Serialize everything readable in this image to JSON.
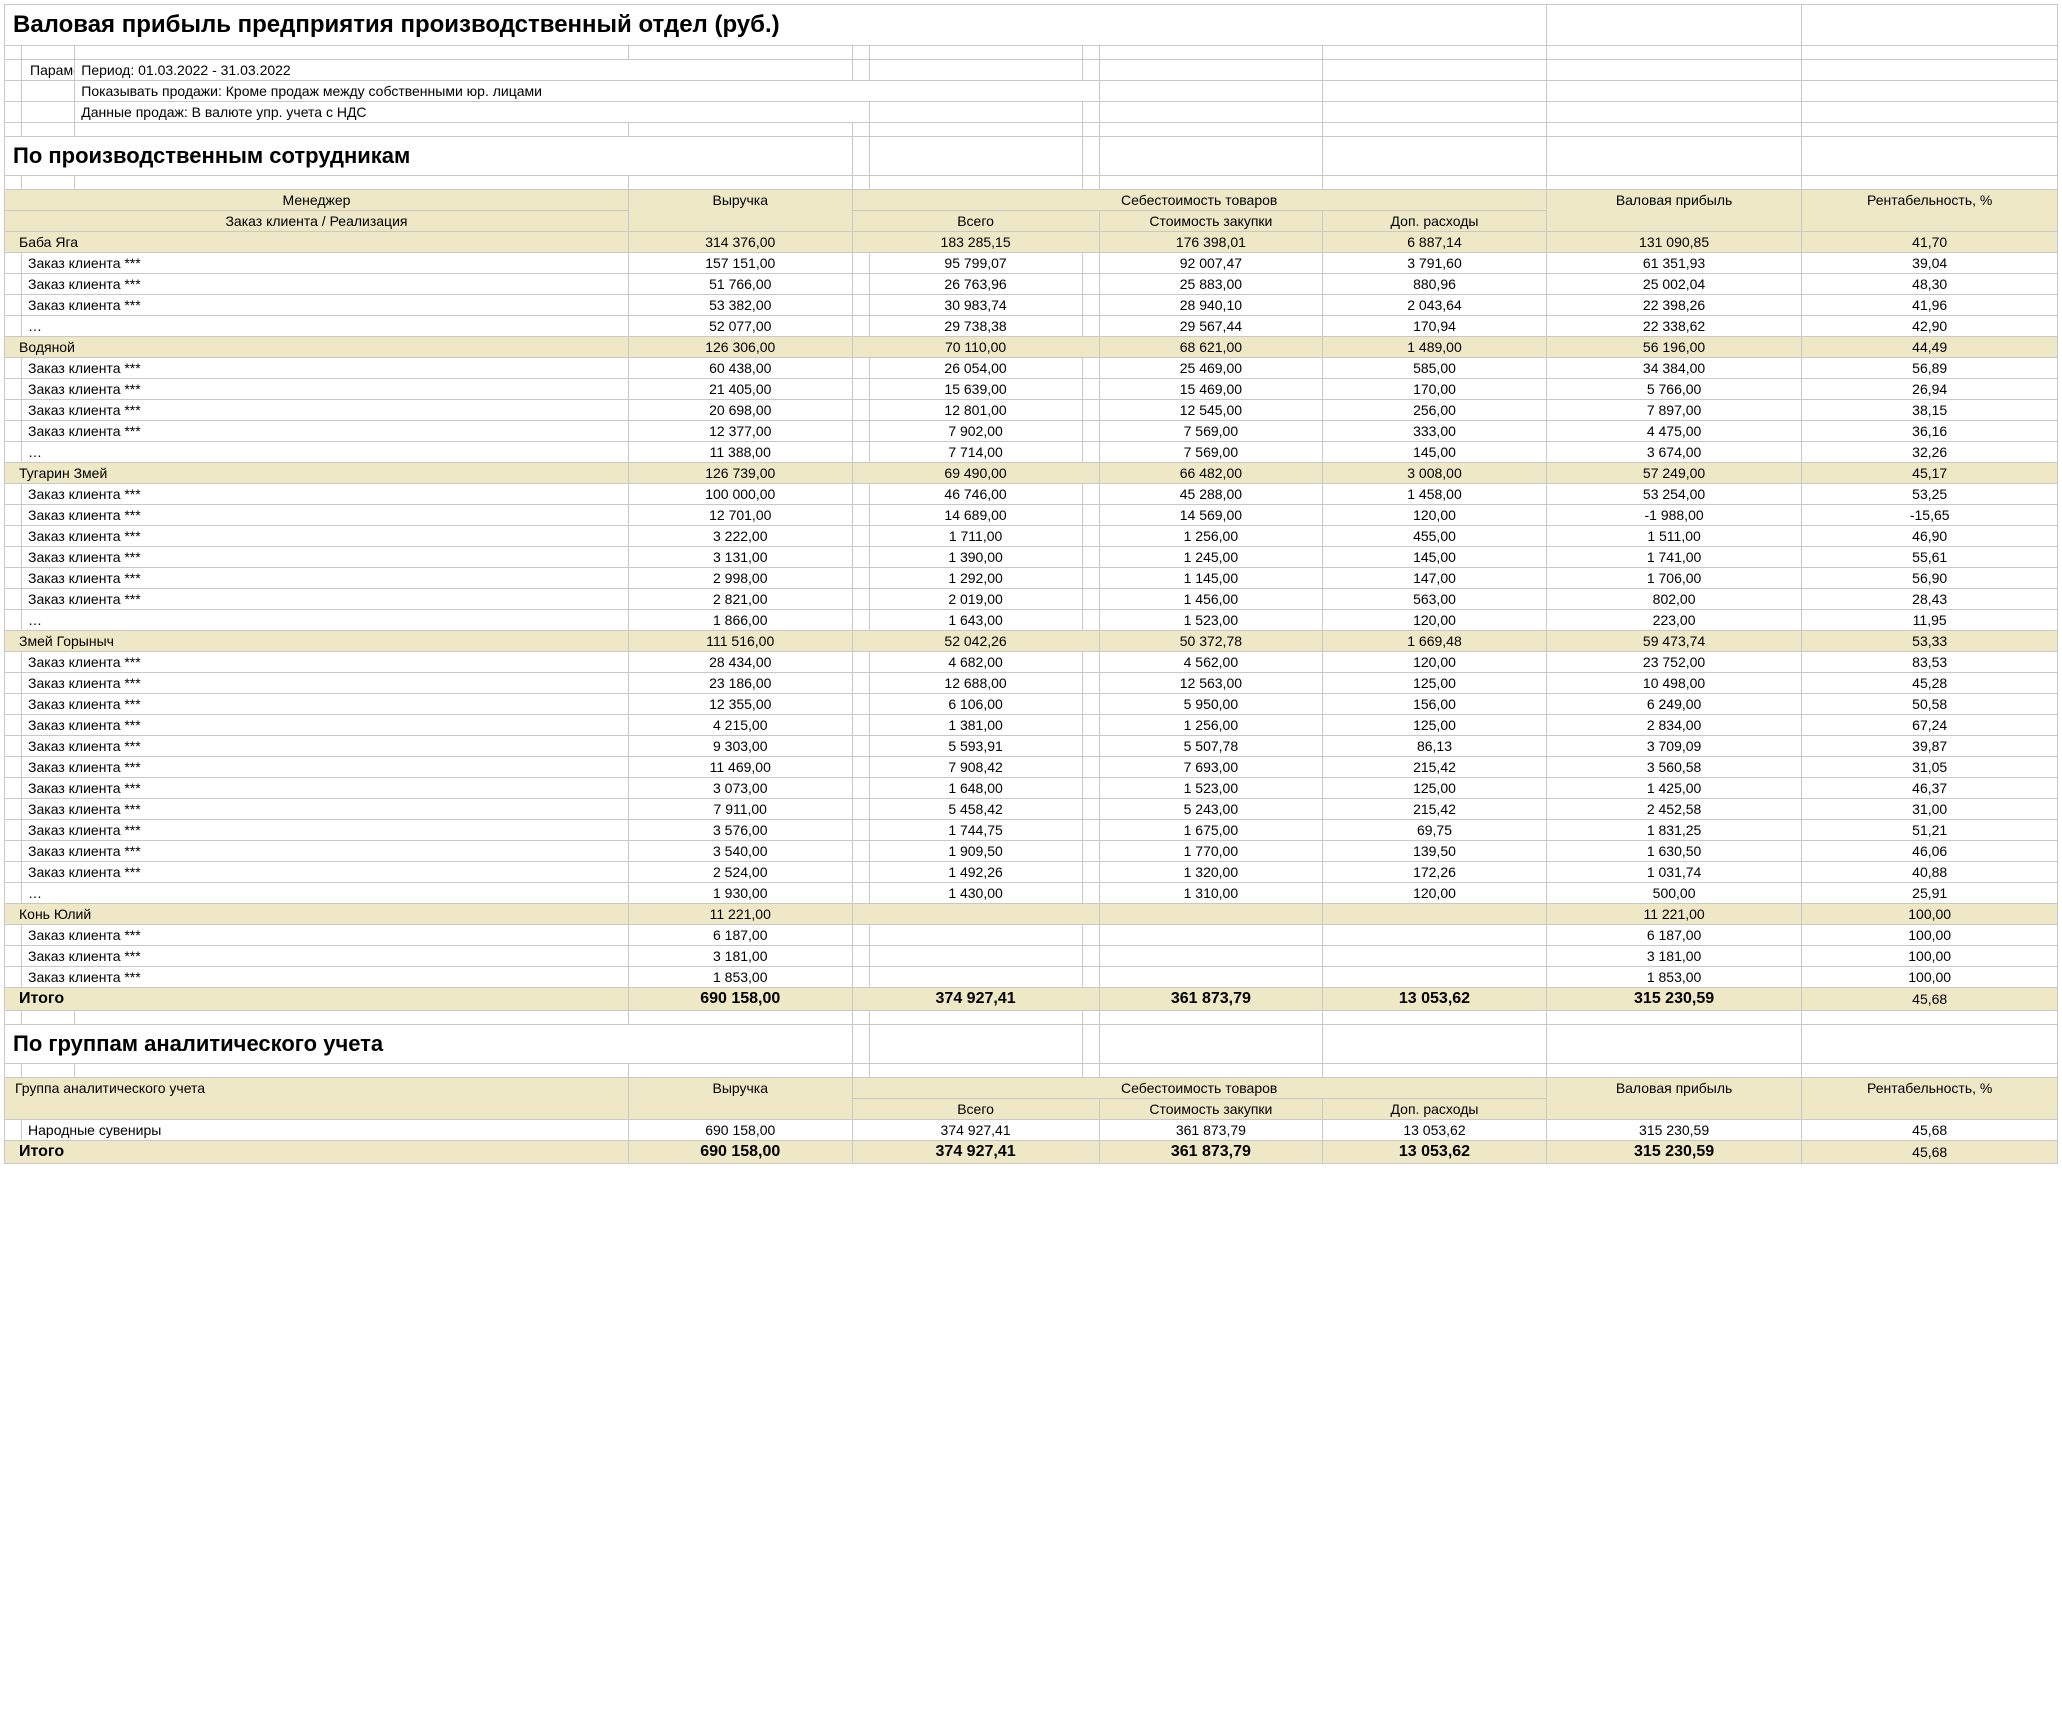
{
  "title": "Валовая прибыль предприятия производственный отдел (руб.)",
  "params": {
    "label": "Параметры:",
    "period": "Период: 01.03.2022 - 31.03.2022",
    "salesFilter": "Показывать продажи: Кроме продаж между собственными юр. лицами",
    "salesData": "Данные продаж: В валюте упр. учета с НДС"
  },
  "section1": {
    "title": "По производственным сотрудникам",
    "headers": {
      "manager": "Менеджер",
      "orderLine": "Заказ клиента / Реализация",
      "revenue": "Выручка",
      "costGroup": "Себестоимость товаров",
      "costTotal": "Всего",
      "costPurchase": "Стоимость закупки",
      "costExtra": "Доп. расходы",
      "gross": "Валовая прибыль",
      "profitPct": "Рентабельность, %"
    },
    "managers": [
      {
        "name": "Баба Яга",
        "totals": [
          "314 376,00",
          "183 285,15",
          "176 398,01",
          "6 887,14",
          "131 090,85",
          "41,70"
        ],
        "rows": [
          [
            "Заказ клиента ***",
            "157 151,00",
            "95 799,07",
            "92 007,47",
            "3 791,60",
            "61 351,93",
            "39,04"
          ],
          [
            "Заказ клиента ***",
            "51 766,00",
            "26 763,96",
            "25 883,00",
            "880,96",
            "25 002,04",
            "48,30"
          ],
          [
            "Заказ клиента ***",
            "53 382,00",
            "30 983,74",
            "28 940,10",
            "2 043,64",
            "22 398,26",
            "41,96"
          ],
          [
            "…",
            "52 077,00",
            "29 738,38",
            "29 567,44",
            "170,94",
            "22 338,62",
            "42,90"
          ]
        ]
      },
      {
        "name": "Водяной",
        "totals": [
          "126 306,00",
          "70 110,00",
          "68 621,00",
          "1 489,00",
          "56 196,00",
          "44,49"
        ],
        "rows": [
          [
            "Заказ клиента ***",
            "60 438,00",
            "26 054,00",
            "25 469,00",
            "585,00",
            "34 384,00",
            "56,89"
          ],
          [
            "Заказ клиента ***",
            "21 405,00",
            "15 639,00",
            "15 469,00",
            "170,00",
            "5 766,00",
            "26,94"
          ],
          [
            "Заказ клиента ***",
            "20 698,00",
            "12 801,00",
            "12 545,00",
            "256,00",
            "7 897,00",
            "38,15"
          ],
          [
            "Заказ клиента ***",
            "12 377,00",
            "7 902,00",
            "7 569,00",
            "333,00",
            "4 475,00",
            "36,16"
          ],
          [
            "…",
            "11 388,00",
            "7 714,00",
            "7 569,00",
            "145,00",
            "3 674,00",
            "32,26"
          ]
        ]
      },
      {
        "name": "Тугарин Змей",
        "totals": [
          "126 739,00",
          "69 490,00",
          "66 482,00",
          "3 008,00",
          "57 249,00",
          "45,17"
        ],
        "rows": [
          [
            "Заказ клиента ***",
            "100 000,00",
            "46 746,00",
            "45 288,00",
            "1 458,00",
            "53 254,00",
            "53,25"
          ],
          [
            "Заказ клиента ***",
            "12 701,00",
            "14 689,00",
            "14 569,00",
            "120,00",
            "-1 988,00",
            "-15,65"
          ],
          [
            "Заказ клиента ***",
            "3 222,00",
            "1 711,00",
            "1 256,00",
            "455,00",
            "1 511,00",
            "46,90"
          ],
          [
            "Заказ клиента ***",
            "3 131,00",
            "1 390,00",
            "1 245,00",
            "145,00",
            "1 741,00",
            "55,61"
          ],
          [
            "Заказ клиента ***",
            "2 998,00",
            "1 292,00",
            "1 145,00",
            "147,00",
            "1 706,00",
            "56,90"
          ],
          [
            "Заказ клиента ***",
            "2 821,00",
            "2 019,00",
            "1 456,00",
            "563,00",
            "802,00",
            "28,43"
          ],
          [
            "…",
            "1 866,00",
            "1 643,00",
            "1 523,00",
            "120,00",
            "223,00",
            "11,95"
          ]
        ]
      },
      {
        "name": "Змей Горыныч",
        "totals": [
          "111 516,00",
          "52 042,26",
          "50 372,78",
          "1 669,48",
          "59 473,74",
          "53,33"
        ],
        "rows": [
          [
            "Заказ клиента ***",
            "28 434,00",
            "4 682,00",
            "4 562,00",
            "120,00",
            "23 752,00",
            "83,53"
          ],
          [
            "Заказ клиента ***",
            "23 186,00",
            "12 688,00",
            "12 563,00",
            "125,00",
            "10 498,00",
            "45,28"
          ],
          [
            "Заказ клиента ***",
            "12 355,00",
            "6 106,00",
            "5 950,00",
            "156,00",
            "6 249,00",
            "50,58"
          ],
          [
            "Заказ клиента ***",
            "4 215,00",
            "1 381,00",
            "1 256,00",
            "125,00",
            "2 834,00",
            "67,24"
          ],
          [
            "Заказ клиента ***",
            "9 303,00",
            "5 593,91",
            "5 507,78",
            "86,13",
            "3 709,09",
            "39,87"
          ],
          [
            "Заказ клиента ***",
            "11 469,00",
            "7 908,42",
            "7 693,00",
            "215,42",
            "3 560,58",
            "31,05"
          ],
          [
            "Заказ клиента ***",
            "3 073,00",
            "1 648,00",
            "1 523,00",
            "125,00",
            "1 425,00",
            "46,37"
          ],
          [
            "Заказ клиента ***",
            "7 911,00",
            "5 458,42",
            "5 243,00",
            "215,42",
            "2 452,58",
            "31,00"
          ],
          [
            "Заказ клиента ***",
            "3 576,00",
            "1 744,75",
            "1 675,00",
            "69,75",
            "1 831,25",
            "51,21"
          ],
          [
            "Заказ клиента ***",
            "3 540,00",
            "1 909,50",
            "1 770,00",
            "139,50",
            "1 630,50",
            "46,06"
          ],
          [
            "Заказ клиента ***",
            "2 524,00",
            "1 492,26",
            "1 320,00",
            "172,26",
            "1 031,74",
            "40,88"
          ],
          [
            "…",
            "1 930,00",
            "1 430,00",
            "1 310,00",
            "120,00",
            "500,00",
            "25,91"
          ]
        ]
      },
      {
        "name": "Конь Юлий",
        "totals": [
          "11 221,00",
          "",
          "",
          "",
          "11 221,00",
          "100,00"
        ],
        "rows": [
          [
            "Заказ клиента ***",
            "6 187,00",
            "",
            "",
            "",
            "6 187,00",
            "100,00"
          ],
          [
            "Заказ клиента ***",
            "3 181,00",
            "",
            "",
            "",
            "3 181,00",
            "100,00"
          ],
          [
            "Заказ клиента ***",
            "1 853,00",
            "",
            "",
            "",
            "1 853,00",
            "100,00"
          ]
        ]
      }
    ],
    "total": {
      "label": "Итого",
      "values": [
        "690 158,00",
        "374 927,41",
        "361 873,79",
        "13 053,62",
        "315 230,59",
        "45,68"
      ]
    }
  },
  "section2": {
    "title": "По группам аналитического учета",
    "headers": {
      "group": "Группа аналитического учета",
      "revenue": "Выручка",
      "costGroup": "Себестоимость товаров",
      "costTotal": "Всего",
      "costPurchase": "Стоимость закупки",
      "costExtra": "Доп. расходы",
      "gross": "Валовая прибыль",
      "profitPct": "Рентабельность, %"
    },
    "rows": [
      [
        "Народные сувениры",
        "690 158,00",
        "374 927,41",
        "361 873,79",
        "13 053,62",
        "315 230,59",
        "45,68"
      ]
    ],
    "total": {
      "label": "Итого",
      "values": [
        "690 158,00",
        "374 927,41",
        "361 873,79",
        "13 053,62",
        "315 230,59",
        "45,68"
      ]
    }
  },
  "style": {
    "header_bg": "#eee8c6",
    "border_color": "#c8c8c8",
    "title_fontsize": 24,
    "section_fontsize": 22,
    "body_fontsize": 14
  }
}
